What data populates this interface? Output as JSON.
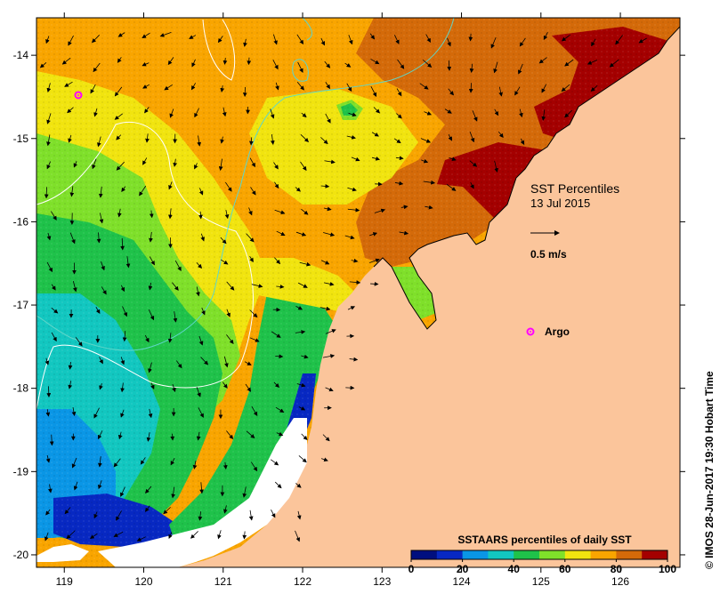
{
  "map": {
    "title_line1": "SST Percentiles",
    "title_line2": "13 Jul 2015",
    "scale_label": "0.5 m/s",
    "argo_label": "Argo",
    "credit": "© IMOS 28-Jun-2017 19:30 Hobart Time",
    "colorbar_title": "SSTAARS percentiles of daily SST",
    "colorbar_ticks": [
      "0",
      "20",
      "40",
      "60",
      "80",
      "100"
    ],
    "colorbar_colors": [
      "#000f7f",
      "#0728c2",
      "#0a96e6",
      "#12c7c0",
      "#1fc24a",
      "#7fe02a",
      "#f1e40f",
      "#f9a500",
      "#d46a09",
      "#a40000"
    ],
    "x_ticks": [
      "119",
      "120",
      "121",
      "122",
      "123",
      "124",
      "125",
      "126"
    ],
    "y_ticks": [
      "-14",
      "-15",
      "-16",
      "-17",
      "-18",
      "-19",
      "-20"
    ],
    "land_color": "#fbc59b",
    "argo_color": "#ff00ff"
  },
  "chart_data": {
    "type": "heatmap",
    "x_range": [
      118.65,
      126.75
    ],
    "y_range": [
      -20.15,
      -13.55
    ],
    "x_ticks": [
      119,
      120,
      121,
      122,
      123,
      124,
      125,
      126
    ],
    "y_ticks": [
      -14,
      -15,
      -16,
      -17,
      -18,
      -19,
      -20
    ],
    "colorbar_range": [
      0,
      100
    ],
    "argo_floats": [
      [
        124.8,
        -17.25
      ],
      [
        119.2,
        -14.45
      ]
    ],
    "variable": "SST percentiles"
  }
}
